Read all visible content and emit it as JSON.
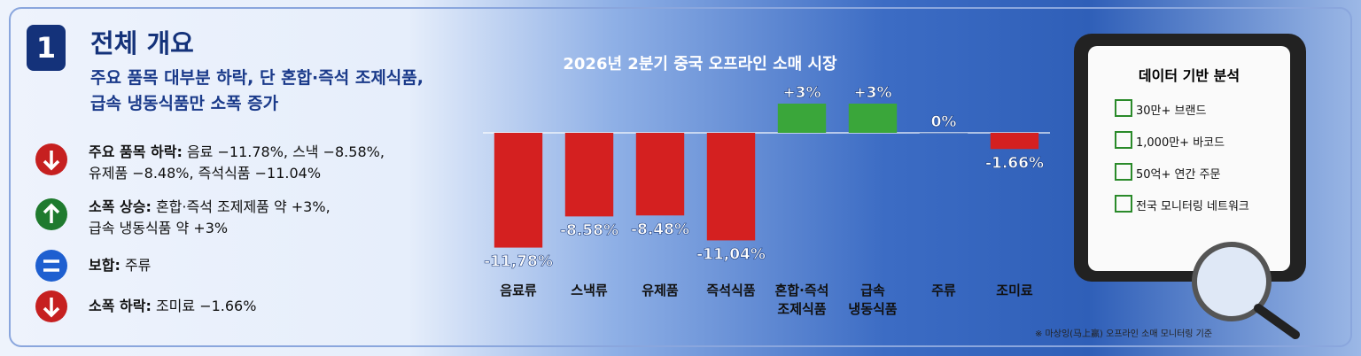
{
  "panel": {
    "number": "1",
    "title": "전체 개요",
    "subtitle": "주요 품목 대부분 하락, 단 혼합·즉석 조제식품,\n급속 냉동식품만 소폭 증가",
    "items": [
      {
        "label": "주요 품목 하락:",
        "text": "음료 −11.78%, 스낵 −8.58%,\n유제품 −8.48%, 즉석식품 −11.04%"
      },
      {
        "label": "소폭 상승:",
        "text": "혼합·즉석 조제제품 약 +3%,\n급속 냉동식품 약 +3%"
      },
      {
        "label": "보합:",
        "text": "주류"
      },
      {
        "label": "소폭 하락:",
        "text": "조미료 −1.66%"
      }
    ]
  },
  "chart_data": {
    "type": "bar",
    "title": "2026년 2분기 중국 오프라인 소매 시장",
    "categories": [
      "음료류",
      "스낵류",
      "유제품",
      "즉석식품",
      "혼합·즉석\n조제식품",
      "급속\n냉동식품",
      "주류",
      "조미료"
    ],
    "values": [
      -11.78,
      -8.58,
      -8.48,
      -11.04,
      3,
      3,
      0,
      -1.66
    ],
    "value_labels": [
      "-11,78%",
      "-8.58%",
      "-8.48%",
      "-11,04%",
      "+3%",
      "+3%",
      "0%",
      "-1.66%"
    ],
    "colors": [
      "#d42020",
      "#d42020",
      "#d42020",
      "#d42020",
      "#3aa63a",
      "#3aa63a",
      "#5a78b0",
      "#d42020"
    ]
  },
  "tablet": {
    "title": "데이터 기반 분석",
    "items": [
      "30만+ 브랜드",
      "1,000만+ 바코드",
      "50억+ 연간 주문",
      "전국 모니터링 네트워크"
    ]
  },
  "footnote": "※ 마상잉(马上赢) 오프라인 소매 모니터링 기준"
}
